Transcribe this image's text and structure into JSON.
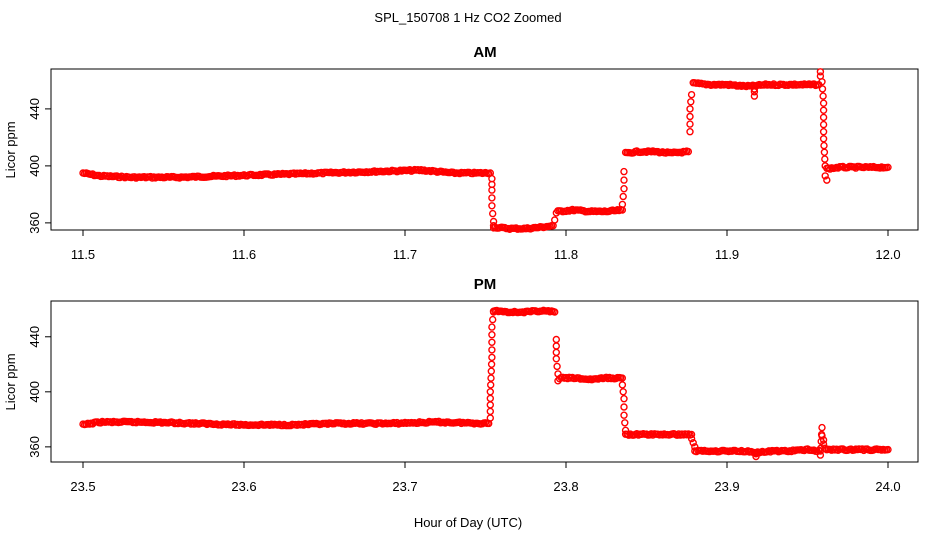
{
  "figure": {
    "title": "SPL_150708  1 Hz CO2 Zoomed",
    "xlabel": "Hour of Day (UTC)"
  },
  "colors": {
    "points": "#ff0000",
    "frame": "#000000"
  },
  "chart_data": [
    {
      "type": "scatter",
      "title": "AM",
      "xlabel": "",
      "ylabel": "Licor ppm",
      "xlim": [
        11.5,
        12.0
      ],
      "ylim": [
        355,
        468
      ],
      "x_ticks": [
        "11.5",
        "11.6",
        "11.7",
        "11.8",
        "11.9",
        "12.0"
      ],
      "y_ticks": [
        "360",
        "400",
        "440"
      ],
      "marker": "open-circle",
      "grid": false,
      "segments": [
        {
          "x": [
            11.5,
            11.51,
            11.53,
            11.56,
            11.59,
            11.62,
            11.65,
            11.68,
            11.71,
            11.73,
            11.753
          ],
          "y": [
            395,
            393,
            392,
            392,
            393,
            394,
            395,
            396,
            397,
            395,
            395
          ]
        },
        {
          "x": [
            11.754,
            11.754,
            11.754,
            11.755,
            11.755
          ],
          "y": [
            391,
            383,
            372,
            361,
            358
          ]
        },
        {
          "x": [
            11.755,
            11.765,
            11.775,
            11.785,
            11.792
          ],
          "y": [
            357,
            356,
            356,
            357,
            358
          ]
        },
        {
          "x": [
            11.793,
            11.794
          ],
          "y": [
            362,
            367
          ]
        },
        {
          "x": [
            11.795,
            11.805,
            11.815,
            11.825,
            11.835
          ],
          "y": [
            368,
            369,
            368,
            368,
            369
          ]
        },
        {
          "x": [
            11.835,
            11.836,
            11.836
          ],
          "y": [
            373,
            384,
            396
          ]
        },
        {
          "x": [
            11.837,
            11.845,
            11.855,
            11.865,
            11.876
          ],
          "y": [
            409,
            410,
            410,
            409,
            410
          ]
        },
        {
          "x": [
            11.877,
            11.877,
            11.878
          ],
          "y": [
            424,
            440,
            450
          ]
        },
        {
          "x": [
            11.879,
            11.89,
            11.9,
            11.91,
            11.915,
            11.925,
            11.935,
            11.945,
            11.957
          ],
          "y": [
            458,
            457,
            457,
            456,
            456,
            457,
            457,
            457,
            457
          ]
        },
        {
          "x": [
            11.917,
            11.917,
            11.917
          ],
          "y": [
            449,
            452,
            454
          ]
        },
        {
          "x": [
            11.958,
            11.958,
            11.959,
            11.96,
            11.96,
            11.961,
            11.961,
            11.962
          ],
          "y": [
            463,
            466,
            459,
            444,
            419,
            400,
            393,
            390
          ]
        },
        {
          "x": [
            11.962,
            11.97,
            11.98,
            11.99,
            12.0
          ],
          "y": [
            398,
            399,
            399,
            399,
            399
          ]
        }
      ]
    },
    {
      "type": "scatter",
      "title": "PM",
      "xlabel": "",
      "ylabel": "Licor ppm",
      "xlim": [
        23.5,
        24.0
      ],
      "ylim": [
        349,
        466
      ],
      "x_ticks": [
        "23.5",
        "23.6",
        "23.7",
        "23.8",
        "23.9",
        "24.0"
      ],
      "y_ticks": [
        "360",
        "400",
        "440"
      ],
      "marker": "open-circle",
      "grid": false,
      "segments": [
        {
          "x": [
            23.5,
            23.51,
            23.54,
            23.57,
            23.6,
            23.63,
            23.66,
            23.69,
            23.72,
            23.752
          ],
          "y": [
            376,
            378,
            378,
            377,
            376,
            376,
            377,
            377,
            378,
            377
          ]
        },
        {
          "x": [
            23.753,
            23.753,
            23.754,
            23.754,
            23.755
          ],
          "y": [
            381,
            400,
            425,
            447,
            458
          ]
        },
        {
          "x": [
            23.755,
            23.765,
            23.775,
            23.785,
            23.793
          ],
          "y": [
            459,
            458,
            458,
            459,
            458
          ]
        },
        {
          "x": [
            23.794,
            23.794,
            23.795,
            23.795
          ],
          "y": [
            438,
            424,
            413,
            408
          ]
        },
        {
          "x": [
            23.796,
            23.805,
            23.815,
            23.825,
            23.835
          ],
          "y": [
            410,
            410,
            409,
            410,
            410
          ]
        },
        {
          "x": [
            23.835,
            23.836,
            23.836,
            23.837
          ],
          "y": [
            405,
            395,
            383,
            372
          ]
        },
        {
          "x": [
            23.837,
            23.85,
            23.86,
            23.87,
            23.878
          ],
          "y": [
            369,
            369,
            369,
            369,
            369
          ]
        },
        {
          "x": [
            23.878,
            23.879,
            23.88
          ],
          "y": [
            366,
            363,
            360
          ]
        },
        {
          "x": [
            23.88,
            23.89,
            23.9,
            23.91,
            23.92,
            23.93,
            23.94,
            23.95,
            23.958
          ],
          "y": [
            357,
            357,
            357,
            357,
            356,
            357,
            357,
            358,
            357
          ]
        },
        {
          "x": [
            23.918,
            23.918
          ],
          "y": [
            353,
            355
          ]
        },
        {
          "x": [
            23.958,
            23.959,
            23.959,
            23.96,
            23.96,
            23.961
          ],
          "y": [
            354,
            374,
            368,
            365,
            362,
            359
          ]
        },
        {
          "x": [
            23.962,
            23.97,
            23.98,
            23.99,
            24.0
          ],
          "y": [
            358,
            358,
            358,
            358,
            358
          ]
        }
      ]
    }
  ]
}
